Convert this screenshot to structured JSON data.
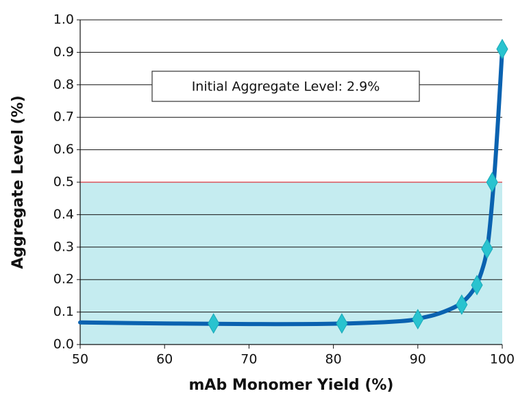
{
  "chart_data": {
    "type": "scatter",
    "x_label": "mAb Monomer Yield (%)",
    "y_label": "Aggregate Level (%)",
    "annotation": "Initial Aggregate Level: 2.9%",
    "xlim": [
      50,
      100
    ],
    "xticks": [
      50,
      60,
      70,
      80,
      90,
      100
    ],
    "ylim": [
      0,
      1
    ],
    "yticks": [
      {
        "value": 0,
        "label": "0.0"
      },
      0.1,
      0.2,
      0.3,
      0.4,
      0.5,
      0.6,
      0.7,
      0.8,
      0.9,
      {
        "value": 1,
        "label": "1.0"
      }
    ],
    "grid": true,
    "shaded_below": 0.5,
    "shade_color": "#c5ecf0",
    "shade_edge_color": "#d9343c",
    "series": [
      {
        "mode": "line",
        "color": "#0a62b0",
        "x": [
          50,
          60,
          70,
          80,
          88,
          91,
          93,
          95,
          96.5,
          97.5,
          98.3,
          99,
          99.5,
          100
        ],
        "values": [
          0.068,
          0.065,
          0.063,
          0.064,
          0.072,
          0.085,
          0.1,
          0.125,
          0.165,
          0.22,
          0.31,
          0.5,
          0.69,
          0.91
        ]
      },
      {
        "mode": "markers",
        "color": "#29c3cf",
        "x": [
          65.8,
          81,
          90,
          95.2,
          97,
          98.2,
          98.8,
          100
        ],
        "values": [
          0.065,
          0.065,
          0.078,
          0.123,
          0.183,
          0.295,
          0.5,
          0.91
        ]
      }
    ]
  }
}
